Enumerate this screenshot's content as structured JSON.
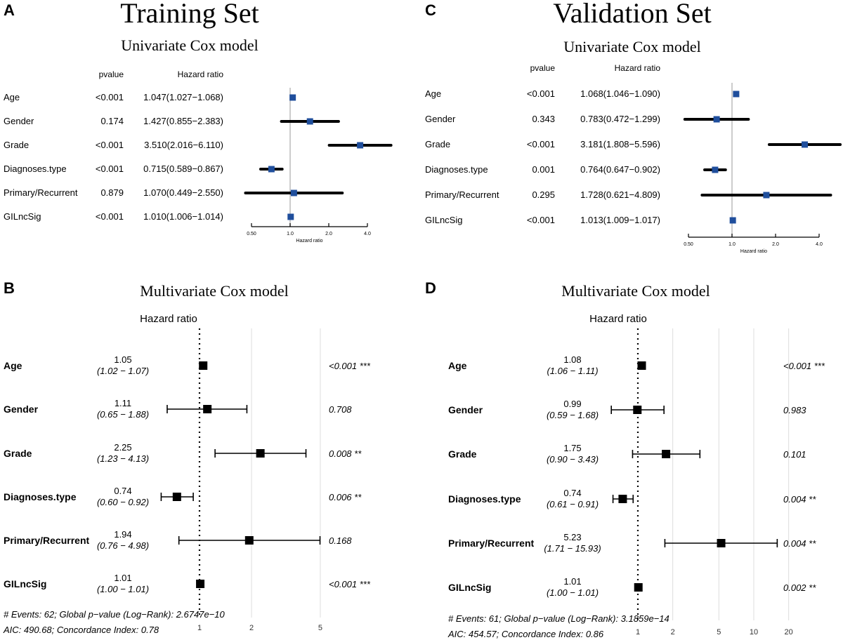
{
  "panel_letters": [
    "A",
    "B",
    "C",
    "D"
  ],
  "chart_data": [
    {
      "type": "forest",
      "panel": "A",
      "title": "Training Set",
      "subtitle": "Univariate Cox model",
      "col_headers": {
        "pvalue": "pvalue",
        "hr": "Hazard ratio"
      },
      "xlabel": "Hazard ratio",
      "x_scale": "log2",
      "x_ticks": [
        0.5,
        1.0,
        2.0,
        4.0
      ],
      "x_tick_labels": [
        "0.50",
        "1.0",
        "2.0",
        "4.0"
      ],
      "marker_color": "#1f4e9c",
      "rows": [
        {
          "label": "Age",
          "pvalue": "<0.001",
          "hr_text": "1.047(1.027−1.068)",
          "hr": 1.047,
          "lo": 1.027,
          "hi": 1.068
        },
        {
          "label": "Gender",
          "pvalue": "0.174",
          "hr_text": "1.427(0.855−2.383)",
          "hr": 1.427,
          "lo": 0.855,
          "hi": 2.383
        },
        {
          "label": "Grade",
          "pvalue": "<0.001",
          "hr_text": "3.510(2.016−6.110)",
          "hr": 3.51,
          "lo": 2.016,
          "hi": 6.11
        },
        {
          "label": "Diagnoses.type",
          "pvalue": "<0.001",
          "hr_text": "0.715(0.589−0.867)",
          "hr": 0.715,
          "lo": 0.589,
          "hi": 0.867
        },
        {
          "label": "Primary/Recurrent",
          "pvalue": "0.879",
          "hr_text": "1.070(0.449−2.550)",
          "hr": 1.07,
          "lo": 0.449,
          "hi": 2.55
        },
        {
          "label": "GILncSig",
          "pvalue": "<0.001",
          "hr_text": "1.010(1.006−1.014)",
          "hr": 1.01,
          "lo": 1.006,
          "hi": 1.014
        }
      ]
    },
    {
      "type": "forest",
      "panel": "B",
      "title": "Multivariate Cox model",
      "header": "Hazard ratio",
      "x_scale": "log10",
      "x_ticks": [
        1,
        2,
        5
      ],
      "x_tick_labels": [
        "1",
        "2",
        "5"
      ],
      "marker_color": "#000000",
      "rows": [
        {
          "label": "Age",
          "est_text": "1.05",
          "ci_text": "(1.02 − 1.07)",
          "hr": 1.05,
          "lo": 1.02,
          "hi": 1.07,
          "p_text": "<0.001 ***"
        },
        {
          "label": "Gender",
          "est_text": "1.11",
          "ci_text": "(0.65 − 1.88)",
          "hr": 1.11,
          "lo": 0.65,
          "hi": 1.88,
          "p_text": "0.708"
        },
        {
          "label": "Grade",
          "est_text": "2.25",
          "ci_text": "(1.23 − 4.13)",
          "hr": 2.25,
          "lo": 1.23,
          "hi": 4.13,
          "p_text": "0.008 **"
        },
        {
          "label": "Diagnoses.type",
          "est_text": "0.74",
          "ci_text": "(0.60 − 0.92)",
          "hr": 0.74,
          "lo": 0.6,
          "hi": 0.92,
          "p_text": "0.006 **"
        },
        {
          "label": "Primary/Recurrent",
          "est_text": "1.94",
          "ci_text": "(0.76 − 4.98)",
          "hr": 1.94,
          "lo": 0.76,
          "hi": 4.98,
          "p_text": "0.168"
        },
        {
          "label": "GILncSig",
          "est_text": "1.01",
          "ci_text": "(1.00 − 1.01)",
          "hr": 1.01,
          "lo": 1.0,
          "hi": 1.01,
          "p_text": "<0.001 ***"
        }
      ],
      "footer": [
        "# Events: 62; Global p−value (Log−Rank): 2.6747e−10",
        "AIC: 490.68; Concordance Index: 0.78"
      ]
    },
    {
      "type": "forest",
      "panel": "C",
      "title": "Validation Set",
      "subtitle": "Univariate Cox model",
      "col_headers": {
        "pvalue": "pvalue",
        "hr": "Hazard ratio"
      },
      "xlabel": "Hazard ratio",
      "x_scale": "log2",
      "x_ticks": [
        0.5,
        1.0,
        2.0,
        4.0
      ],
      "x_tick_labels": [
        "0.50",
        "1.0",
        "2.0",
        "4.0"
      ],
      "marker_color": "#1f4e9c",
      "rows": [
        {
          "label": "Age",
          "pvalue": "<0.001",
          "hr_text": "1.068(1.046−1.090)",
          "hr": 1.068,
          "lo": 1.046,
          "hi": 1.09
        },
        {
          "label": "Gender",
          "pvalue": "0.343",
          "hr_text": "0.783(0.472−1.299)",
          "hr": 0.783,
          "lo": 0.472,
          "hi": 1.299
        },
        {
          "label": "Grade",
          "pvalue": "<0.001",
          "hr_text": "3.181(1.808−5.596)",
          "hr": 3.181,
          "lo": 1.808,
          "hi": 5.596
        },
        {
          "label": "Diagnoses.type",
          "pvalue": "0.001",
          "hr_text": "0.764(0.647−0.902)",
          "hr": 0.764,
          "lo": 0.647,
          "hi": 0.902
        },
        {
          "label": "Primary/Recurrent",
          "pvalue": "0.295",
          "hr_text": "1.728(0.621−4.809)",
          "hr": 1.728,
          "lo": 0.621,
          "hi": 4.809
        },
        {
          "label": "GILncSig",
          "pvalue": "<0.001",
          "hr_text": "1.013(1.009−1.017)",
          "hr": 1.013,
          "lo": 1.009,
          "hi": 1.017
        }
      ]
    },
    {
      "type": "forest",
      "panel": "D",
      "title": "Multivariate Cox model",
      "header": "Hazard ratio",
      "x_scale": "log10",
      "x_ticks": [
        1,
        2,
        5,
        10,
        20
      ],
      "x_tick_labels": [
        "1",
        "2",
        "5",
        "10",
        "20"
      ],
      "marker_color": "#000000",
      "rows": [
        {
          "label": "Age",
          "est_text": "1.08",
          "ci_text": "(1.06 −  1.11)",
          "hr": 1.08,
          "lo": 1.06,
          "hi": 1.11,
          "p_text": "<0.001 ***"
        },
        {
          "label": "Gender",
          "est_text": "0.99",
          "ci_text": "(0.59 −  1.68)",
          "hr": 0.99,
          "lo": 0.59,
          "hi": 1.68,
          "p_text": "0.983"
        },
        {
          "label": "Grade",
          "est_text": "1.75",
          "ci_text": "(0.90 −  3.43)",
          "hr": 1.75,
          "lo": 0.9,
          "hi": 3.43,
          "p_text": "0.101"
        },
        {
          "label": "Diagnoses.type",
          "est_text": "0.74",
          "ci_text": "(0.61 −  0.91)",
          "hr": 0.74,
          "lo": 0.61,
          "hi": 0.91,
          "p_text": "0.004 **"
        },
        {
          "label": "Primary/Recurrent",
          "est_text": "5.23",
          "ci_text": "(1.71 − 15.93)",
          "hr": 5.23,
          "lo": 1.71,
          "hi": 15.93,
          "p_text": "0.004 **"
        },
        {
          "label": "GILncSig",
          "est_text": "1.01",
          "ci_text": "(1.00 −  1.01)",
          "hr": 1.01,
          "lo": 1.0,
          "hi": 1.01,
          "p_text": "0.002 **"
        }
      ],
      "footer": [
        "# Events: 61; Global p−value (Log−Rank): 3.1859e−14",
        "AIC: 454.57; Concordance Index: 0.86"
      ]
    }
  ]
}
